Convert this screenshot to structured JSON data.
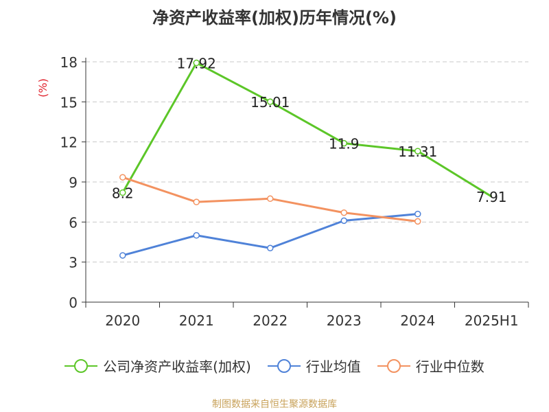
{
  "title": "净资产收益率(加权)历年情况(%)",
  "ylabel": "(%)",
  "source": "制图数据来自恒生聚源数据库",
  "chart_data": {
    "type": "line",
    "title": "净资产收益率(加权)历年情况(%)",
    "xlabel": "",
    "ylabel": "(%)",
    "categories": [
      "2020",
      "2021",
      "2022",
      "2023",
      "2024",
      "2025H1"
    ],
    "ylim": [
      0,
      18
    ],
    "yticks": [
      0,
      3,
      6,
      9,
      12,
      15,
      18
    ],
    "grid": true,
    "legend_position": "bottom",
    "series": [
      {
        "name": "公司净资产收益率(加权)",
        "color": "#5cc628",
        "values": [
          8.2,
          17.92,
          15.01,
          11.9,
          11.31,
          7.91
        ],
        "labels": [
          "8.2",
          "17.92",
          "15.01",
          "11.9",
          "11.31",
          "7.91"
        ]
      },
      {
        "name": "行业均值",
        "color": "#4f82d8",
        "values": [
          3.5,
          5.0,
          4.05,
          6.1,
          6.6,
          null
        ]
      },
      {
        "name": "行业中位数",
        "color": "#f39260",
        "values": [
          9.35,
          7.5,
          7.75,
          6.7,
          6.05,
          null
        ]
      }
    ]
  }
}
